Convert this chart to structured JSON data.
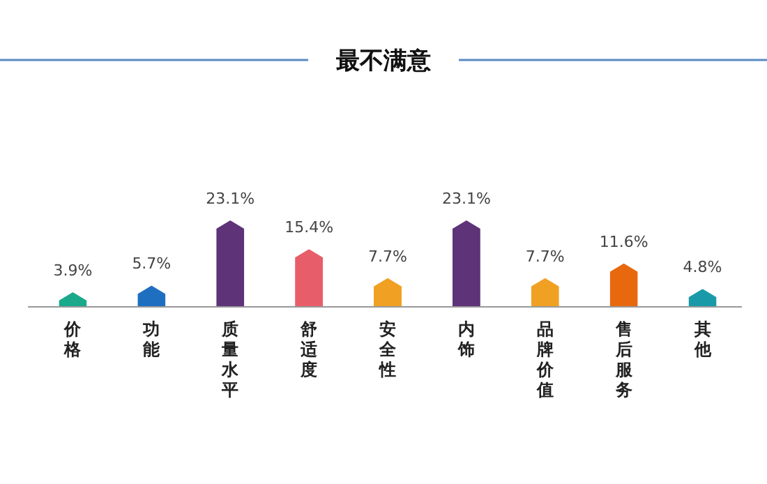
{
  "chart_data": {
    "type": "bar",
    "title": "最不满意",
    "categories": [
      "价格",
      "功能",
      "质量水平",
      "舒适度",
      "安全性",
      "内饰",
      "品牌价值",
      "售后服务",
      "其他"
    ],
    "values": [
      3.9,
      5.7,
      23.1,
      15.4,
      7.7,
      23.1,
      7.7,
      11.6,
      4.8
    ],
    "value_labels": [
      "3.9%",
      "5.7%",
      "23.1%",
      "15.4%",
      "7.7%",
      "23.1%",
      "7.7%",
      "11.6%",
      "4.8%"
    ],
    "colors": [
      "#1aa98b",
      "#1f6fc0",
      "#5e3378",
      "#e85d6a",
      "#f0a124",
      "#5e3378",
      "#f0a124",
      "#e8680e",
      "#1a9aa8"
    ]
  }
}
